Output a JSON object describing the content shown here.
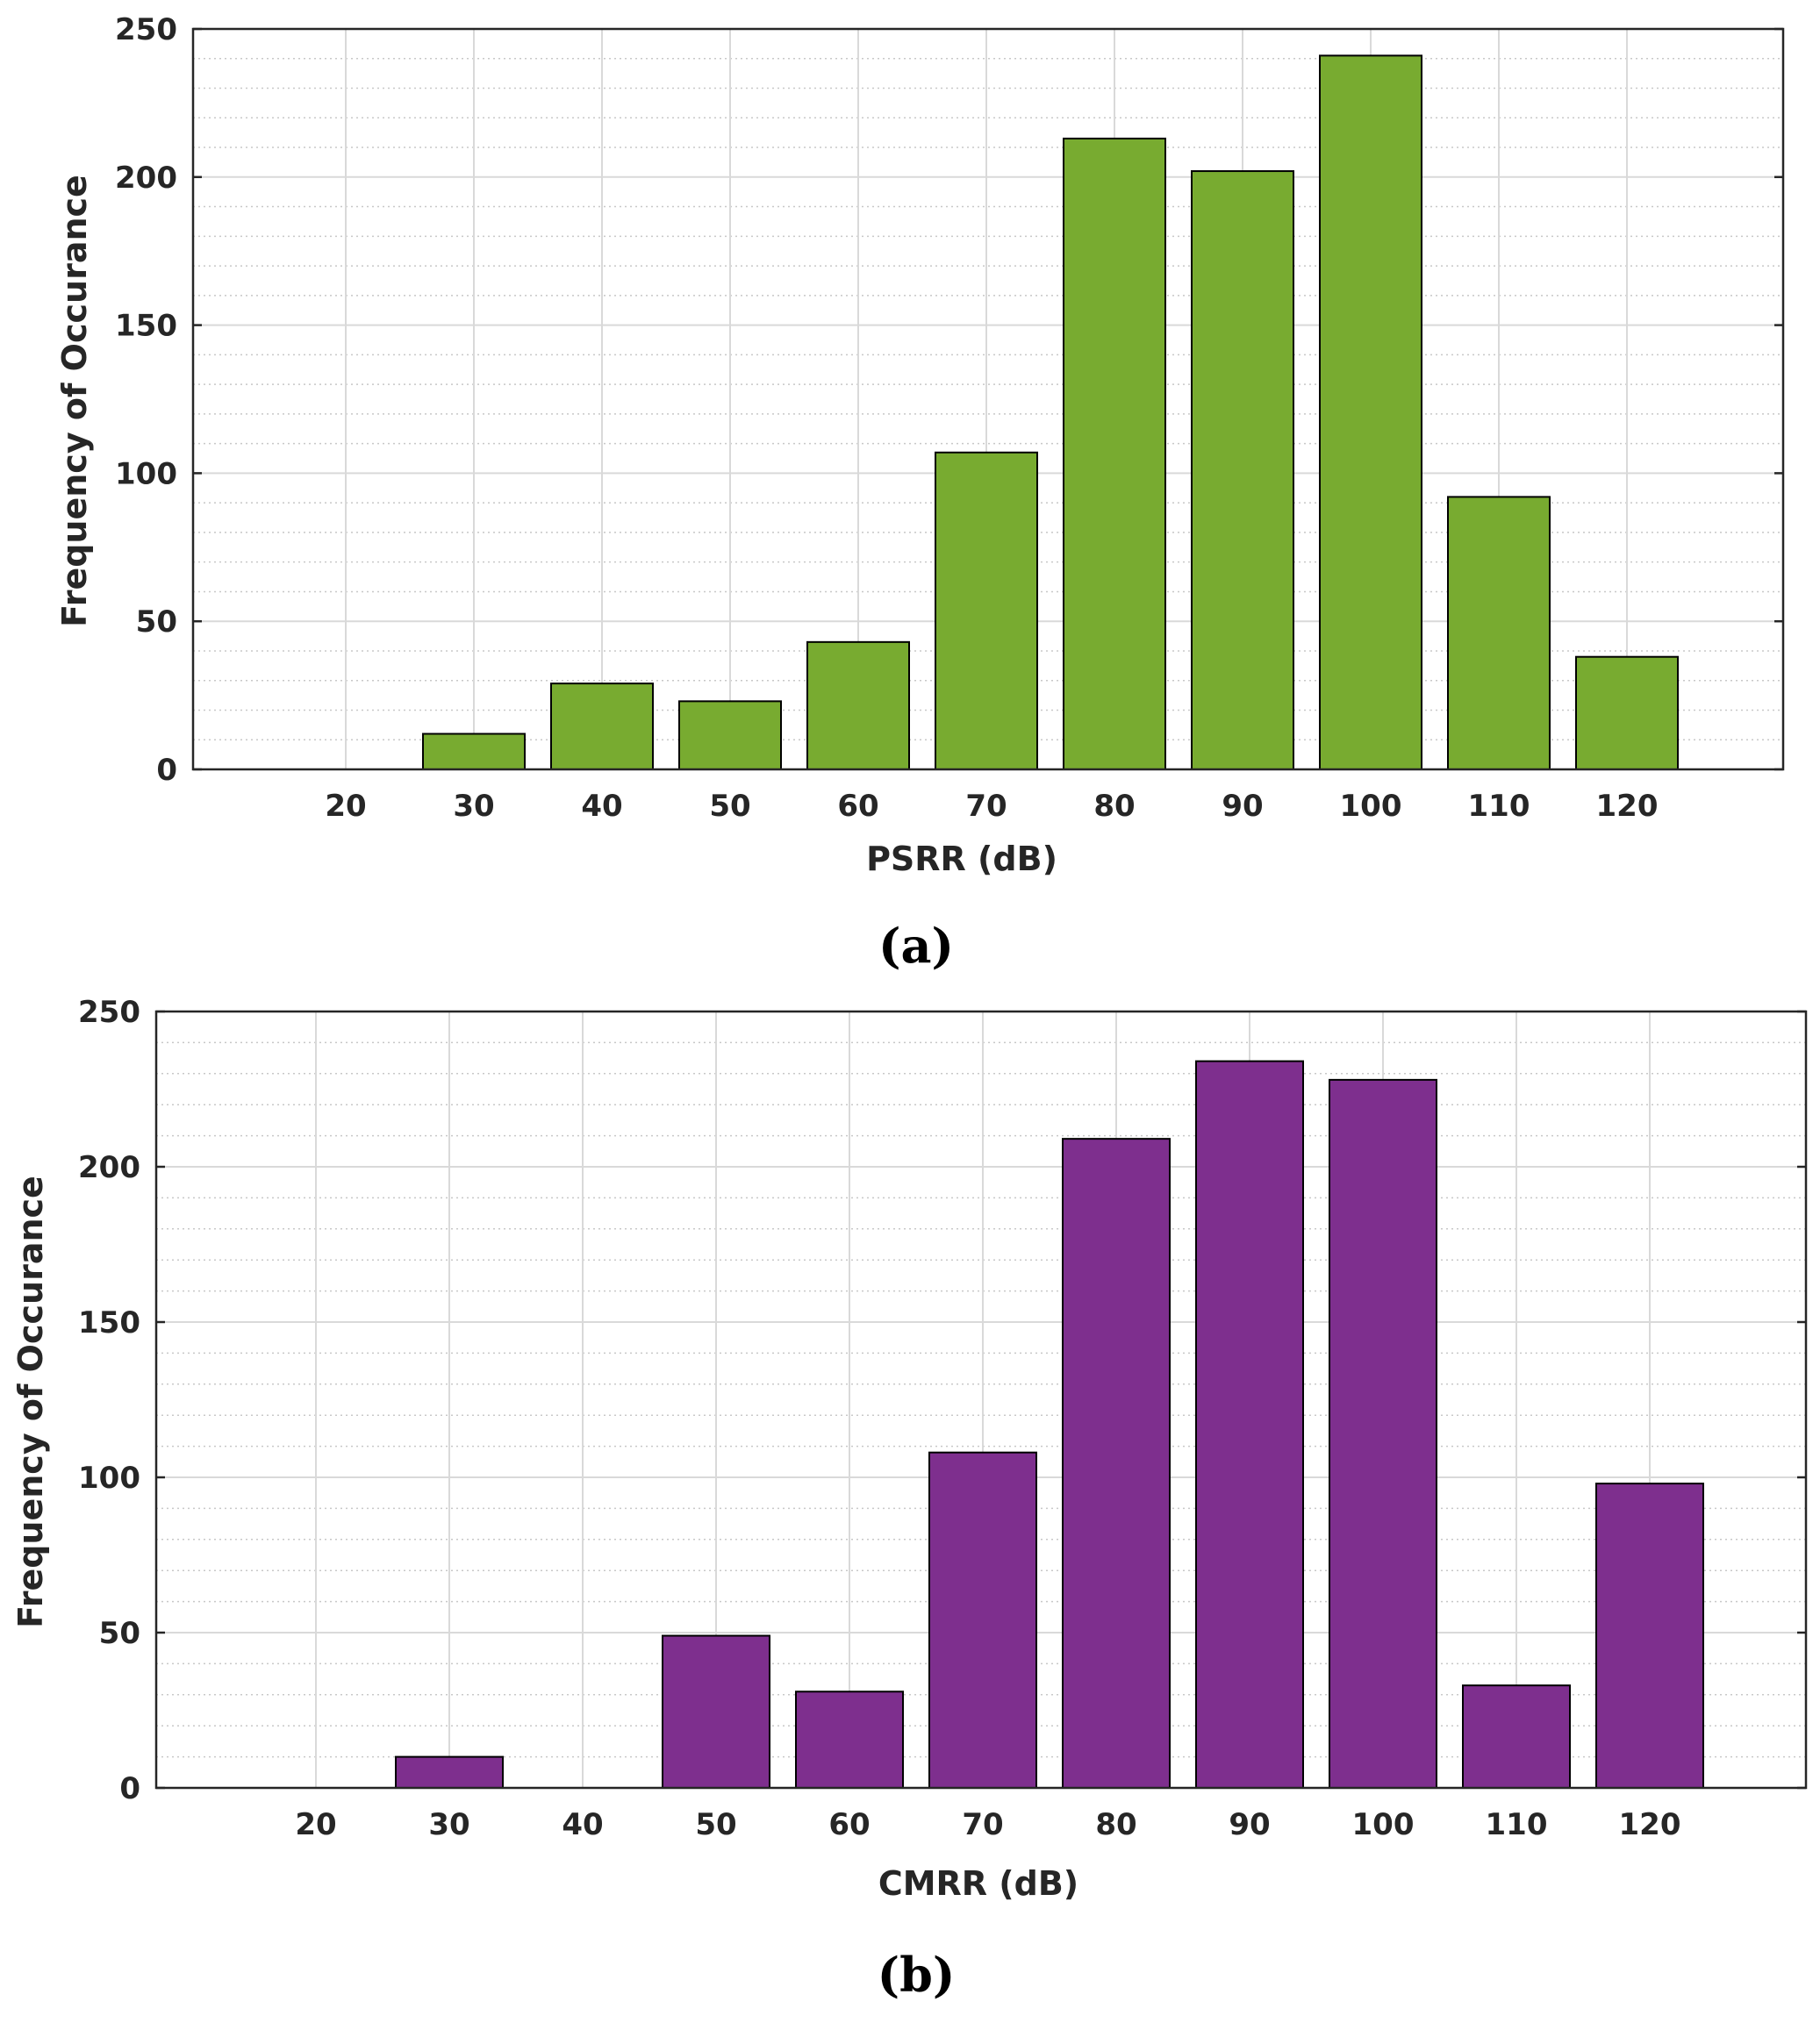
{
  "chart_data": [
    {
      "type": "bar",
      "panel_label": "(a)",
      "xlabel": "PSRR (dB)",
      "ylabel": "Frequency of Occurance",
      "categories": [
        "20",
        "30",
        "40",
        "50",
        "60",
        "70",
        "80",
        "90",
        "100",
        "110",
        "120"
      ],
      "values": [
        0,
        12,
        29,
        23,
        43,
        107,
        213,
        202,
        241,
        92,
        38
      ],
      "ylim": [
        0,
        250
      ],
      "yticks": [
        "0",
        "50",
        "100",
        "150",
        "200",
        "250"
      ],
      "grid": true,
      "bar_color": "#78AB30"
    },
    {
      "type": "bar",
      "panel_label": "(b)",
      "xlabel": "CMRR (dB)",
      "ylabel": "Frequency of Occurance",
      "categories": [
        "20",
        "30",
        "40",
        "50",
        "60",
        "70",
        "80",
        "90",
        "100",
        "110",
        "120"
      ],
      "values": [
        0,
        10,
        0,
        49,
        31,
        108,
        209,
        234,
        228,
        33,
        98
      ],
      "ylim": [
        0,
        250
      ],
      "yticks": [
        "0",
        "50",
        "100",
        "150",
        "200",
        "250"
      ],
      "grid": true,
      "bar_color": "#7E2F8E"
    }
  ]
}
